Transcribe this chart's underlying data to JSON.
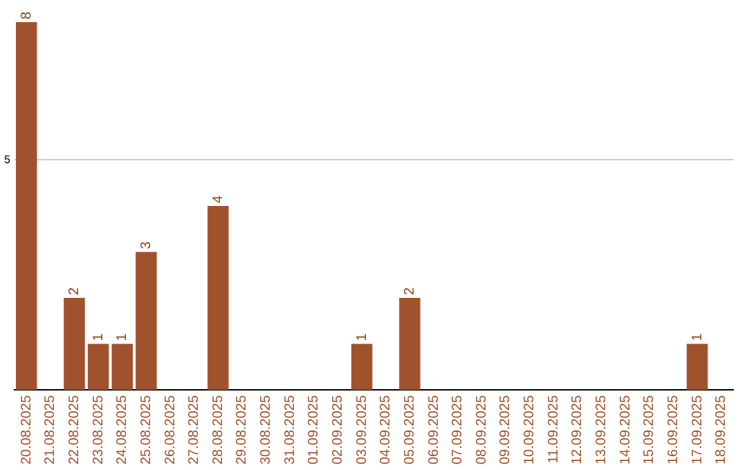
{
  "chart_data": {
    "type": "bar",
    "categories": [
      "20.08.2025",
      "21.08.2025",
      "22.08.2025",
      "23.08.2025",
      "24.08.2025",
      "25.08.2025",
      "26.08.2025",
      "27.08.2025",
      "28.08.2025",
      "29.08.2025",
      "30.08.2025",
      "31.08.2025",
      "01.09.2025",
      "02.09.2025",
      "03.09.2025",
      "04.09.2025",
      "05.09.2025",
      "06.09.2025",
      "07.09.2025",
      "08.09.2025",
      "09.09.2025",
      "10.09.2025",
      "11.09.2025",
      "12.09.2025",
      "13.09.2025",
      "14.09.2025",
      "15.09.2025",
      "16.09.2025",
      "17.09.2025",
      "18.09.2025"
    ],
    "values": [
      8,
      0,
      2,
      1,
      1,
      3,
      0,
      0,
      4,
      0,
      0,
      0,
      0,
      0,
      1,
      0,
      2,
      0,
      0,
      0,
      0,
      0,
      0,
      0,
      0,
      0,
      0,
      0,
      1,
      0
    ],
    "value_labels": [
      "8",
      null,
      "2",
      "1",
      "1",
      "3",
      null,
      null,
      "4",
      null,
      null,
      null,
      null,
      null,
      "1",
      null,
      "2",
      null,
      null,
      null,
      null,
      null,
      null,
      null,
      null,
      null,
      null,
      null,
      "1",
      null
    ],
    "color": "#a0522d",
    "ylim": [
      0,
      8
    ],
    "yticks": [
      5
    ],
    "grid": "y",
    "legend": false
  }
}
